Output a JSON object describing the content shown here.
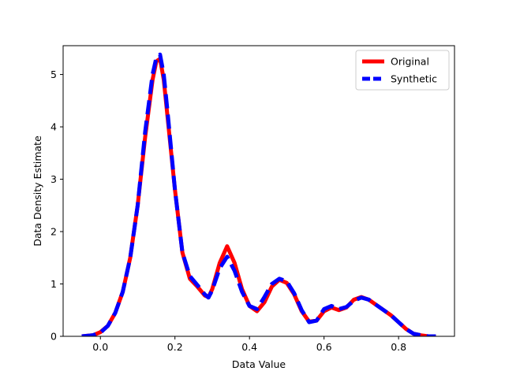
{
  "chart_data": {
    "type": "line",
    "title": "",
    "xlabel": "Data Value",
    "ylabel": "Data Density Estimate",
    "xlim": [
      -0.1,
      0.95
    ],
    "ylim": [
      0,
      5.55
    ],
    "xticks": [
      0.0,
      0.2,
      0.4,
      0.6,
      0.8
    ],
    "xtick_labels": [
      "0.0",
      "0.2",
      "0.4",
      "0.6",
      "0.8"
    ],
    "yticks": [
      0,
      1,
      2,
      3,
      4,
      5
    ],
    "ytick_labels": [
      "0",
      "1",
      "2",
      "3",
      "4",
      "5"
    ],
    "grid": false,
    "legend_position": "top-right",
    "series": [
      {
        "name": "Original",
        "color": "#ff0000",
        "line_style": "solid",
        "x": [
          -0.05,
          -0.02,
          0.0,
          0.02,
          0.04,
          0.06,
          0.08,
          0.1,
          0.12,
          0.14,
          0.15,
          0.16,
          0.17,
          0.18,
          0.2,
          0.22,
          0.24,
          0.26,
          0.28,
          0.29,
          0.3,
          0.32,
          0.34,
          0.36,
          0.38,
          0.4,
          0.42,
          0.44,
          0.46,
          0.48,
          0.5,
          0.52,
          0.54,
          0.56,
          0.58,
          0.6,
          0.62,
          0.64,
          0.66,
          0.68,
          0.7,
          0.72,
          0.74,
          0.76,
          0.78,
          0.8,
          0.82,
          0.84,
          0.86,
          0.88,
          0.9
        ],
        "y": [
          0.0,
          0.02,
          0.08,
          0.2,
          0.45,
          0.85,
          1.5,
          2.5,
          3.8,
          4.9,
          5.25,
          5.3,
          4.9,
          4.2,
          2.8,
          1.6,
          1.1,
          0.95,
          0.78,
          0.75,
          0.9,
          1.4,
          1.72,
          1.4,
          0.9,
          0.58,
          0.48,
          0.65,
          0.95,
          1.08,
          1.02,
          0.8,
          0.48,
          0.28,
          0.3,
          0.48,
          0.55,
          0.5,
          0.55,
          0.7,
          0.75,
          0.7,
          0.6,
          0.5,
          0.4,
          0.27,
          0.14,
          0.05,
          0.02,
          0.0,
          0.0
        ]
      },
      {
        "name": "Synthetic",
        "color": "#0000ff",
        "line_style": "dashed",
        "x": [
          -0.05,
          -0.02,
          0.0,
          0.02,
          0.04,
          0.06,
          0.08,
          0.1,
          0.12,
          0.14,
          0.15,
          0.16,
          0.17,
          0.18,
          0.2,
          0.22,
          0.24,
          0.26,
          0.28,
          0.29,
          0.3,
          0.32,
          0.34,
          0.36,
          0.38,
          0.4,
          0.42,
          0.44,
          0.46,
          0.48,
          0.5,
          0.52,
          0.54,
          0.56,
          0.58,
          0.6,
          0.62,
          0.64,
          0.66,
          0.68,
          0.7,
          0.72,
          0.74,
          0.76,
          0.78,
          0.8,
          0.82,
          0.84,
          0.86,
          0.88,
          0.9
        ],
        "y": [
          0.0,
          0.02,
          0.07,
          0.2,
          0.45,
          0.85,
          1.5,
          2.5,
          3.9,
          5.0,
          5.32,
          5.38,
          5.0,
          4.3,
          2.8,
          1.6,
          1.15,
          0.98,
          0.8,
          0.74,
          0.88,
          1.3,
          1.52,
          1.25,
          0.85,
          0.58,
          0.52,
          0.75,
          1.0,
          1.1,
          1.05,
          0.82,
          0.5,
          0.27,
          0.3,
          0.52,
          0.58,
          0.52,
          0.56,
          0.68,
          0.74,
          0.7,
          0.6,
          0.5,
          0.4,
          0.27,
          0.14,
          0.05,
          0.02,
          0.0,
          0.0
        ]
      }
    ]
  }
}
